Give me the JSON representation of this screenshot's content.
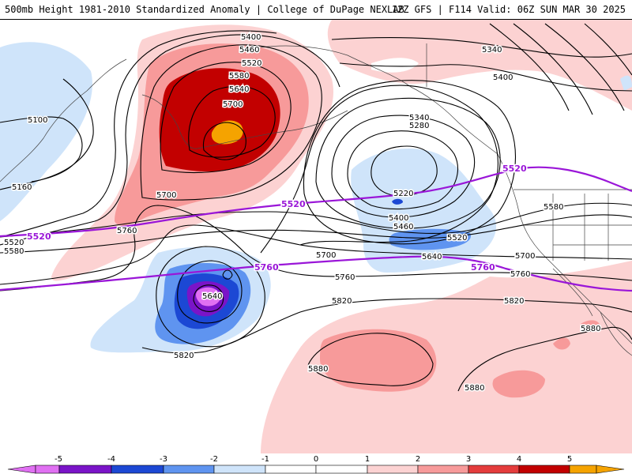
{
  "header": {
    "title_left": "500mb Height 1981-2010 Standardized Anomaly | College of DuPage NEXLAB",
    "title_right": "12Z GFS | F114 Valid: 06Z SUN MAR 30 2025"
  },
  "colors": {
    "pos1": "#fcd2d2",
    "pos2": "#f79a9a",
    "pos3": "#e43c3c",
    "pos4": "#c20000",
    "pos5": "#f5a300",
    "neg1": "#cfe4fa",
    "neg2": "#5f94f0",
    "neg3": "#1c48d4",
    "neg4": "#7a14c8",
    "neg5": "#e070f2",
    "purple_contour": "#9a16d8",
    "black_contour": "#000000"
  },
  "legend": {
    "ticks": [
      "-5",
      "-4",
      "-3",
      "-2",
      "-1",
      "0",
      "1",
      "2",
      "3",
      "4",
      "5"
    ]
  },
  "contour_labels": {
    "black": [
      "5400",
      "5460",
      "5520",
      "5580",
      "5640",
      "5700",
      "5100",
      "5160",
      "5520",
      "5580",
      "5760",
      "5700",
      "5340",
      "5280",
      "5220",
      "5400",
      "5460",
      "5520",
      "5700",
      "5640",
      "5760",
      "5820",
      "5640",
      "5820",
      "5880",
      "5880",
      "5880",
      "5340",
      "5400",
      "5580",
      "5700",
      "5760",
      "5820"
    ],
    "purple": [
      "5520",
      "5520",
      "5520",
      "5760",
      "5760"
    ]
  }
}
